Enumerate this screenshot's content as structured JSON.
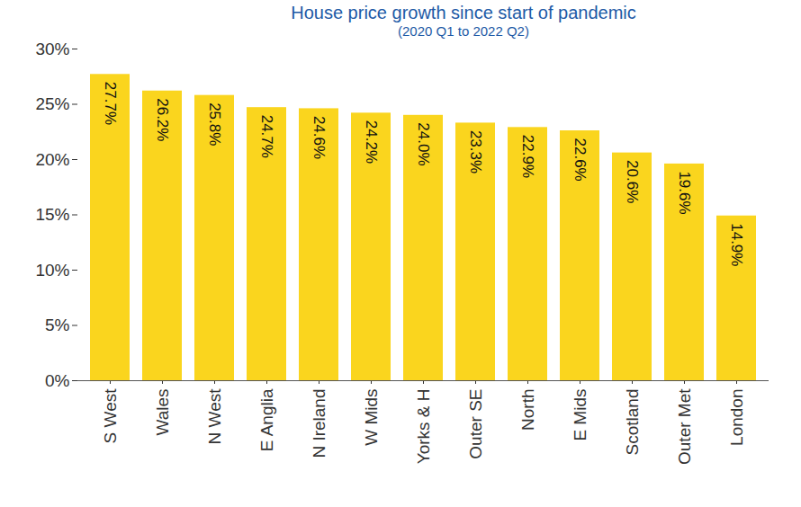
{
  "chart_data": {
    "type": "bar",
    "title": "House price growth since start of pandemic",
    "subtitle": "(2020 Q1 to 2022 Q2)",
    "categories": [
      "S West",
      "Wales",
      "N West",
      "E Anglia",
      "N Ireland",
      "W Mids",
      "Yorks & H",
      "Outer SE",
      "North",
      "E Mids",
      "Scotland",
      "Outer Met",
      "London"
    ],
    "values": [
      27.7,
      26.2,
      25.8,
      24.7,
      24.6,
      24.2,
      24.0,
      23.3,
      22.9,
      22.6,
      20.6,
      19.6,
      14.9
    ],
    "value_labels": [
      "27.7%",
      "26.2%",
      "25.8%",
      "24.7%",
      "24.6%",
      "24.2%",
      "24.0%",
      "23.3%",
      "22.9%",
      "22.6%",
      "20.6%",
      "19.6%",
      "14.9%"
    ],
    "color": "#fad51e",
    "ylim": [
      0,
      30
    ],
    "yticks": [
      {
        "value": 0,
        "label": "0%"
      },
      {
        "value": 5,
        "label": "5%"
      },
      {
        "value": 10,
        "label": "10%"
      },
      {
        "value": 15,
        "label": "15%"
      },
      {
        "value": 20,
        "label": "20%"
      },
      {
        "value": 25,
        "label": "25%"
      },
      {
        "value": 30,
        "label": "30%"
      }
    ],
    "grid": false,
    "data_labels": true
  }
}
